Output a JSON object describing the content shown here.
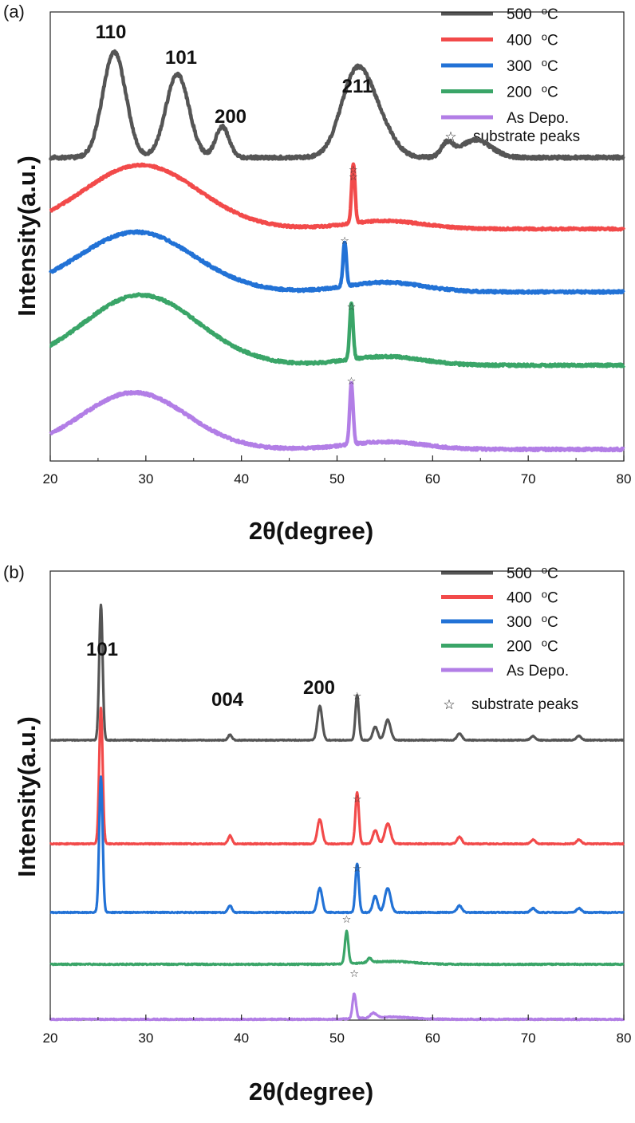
{
  "chart_data": [
    {
      "panel_label": "(a)",
      "type": "line",
      "xlabel": "2θ(degree)",
      "ylabel": "Intensity(a.u.)",
      "xlim": [
        20,
        80
      ],
      "x_ticks": [
        "20",
        "30",
        "40",
        "50",
        "60",
        "70",
        "80"
      ],
      "y_ticks_shown": false,
      "grid": false,
      "legend_position": "top-right",
      "legend": [
        {
          "label": "500",
          "unit": "oC",
          "color": "#555555"
        },
        {
          "label": "400",
          "unit": "oC",
          "color": "#f24a4a"
        },
        {
          "label": "300",
          "unit": "oC",
          "color": "#2272d6"
        },
        {
          "label": "200",
          "unit": "oC",
          "color": "#3aa568"
        },
        {
          "label": "As Depo.",
          "unit": "",
          "color": "#b27ee6"
        }
      ],
      "legend_star_label": "substrate peaks",
      "peak_labels": [
        {
          "text": "110",
          "x": 26.5
        },
        {
          "text": "101",
          "x": 33.5
        },
        {
          "text": "200",
          "x": 38.5
        },
        {
          "text": "211",
          "x": 52
        }
      ],
      "substrate_star_x": [
        51.7,
        51.7,
        50.8,
        51.5,
        51.5
      ],
      "series": [
        {
          "name": "500 oC",
          "color": "#555555",
          "noise": 4,
          "baseline_profile": "flat",
          "base_level": 0.15,
          "peaks": [
            [
              26.7,
              1.2,
              1.2
            ],
            [
              33.3,
              1.2,
              0.95
            ],
            [
              38,
              0.7,
              0.35
            ],
            [
              52,
              1.6,
              0.95
            ],
            [
              54.5,
              1.5,
              0.3
            ],
            [
              61.5,
              0.6,
              0.15
            ],
            [
              64.5,
              1.6,
              0.2
            ]
          ]
        },
        {
          "name": "400 oC",
          "color": "#f24a4a",
          "noise": 2.5,
          "baseline_profile": "flat",
          "base_level": 0.1,
          "hump": {
            "center": 29.5,
            "width": 6,
            "height": 0.8
          },
          "peaks": [
            [
              51.7,
              0.18,
              0.75
            ],
            [
              55,
              4,
              0.1
            ]
          ]
        },
        {
          "name": "300 oC",
          "color": "#2272d6",
          "noise": 3,
          "baseline_profile": "flat",
          "base_level": 0.1,
          "hump": {
            "center": 29,
            "width": 6,
            "height": 0.75
          },
          "peaks": [
            [
              50.8,
              0.18,
              0.55
            ],
            [
              55,
              4,
              0.12
            ]
          ]
        },
        {
          "name": "200 oC",
          "color": "#3aa568",
          "noise": 3,
          "baseline_profile": "flat",
          "base_level": 0.1,
          "hump": {
            "center": 29.5,
            "width": 6,
            "height": 0.8
          },
          "peaks": [
            [
              51.5,
              0.18,
              0.65
            ],
            [
              55,
              4,
              0.1
            ]
          ]
        },
        {
          "name": "As Depo.",
          "color": "#b27ee6",
          "noise": 3,
          "baseline_profile": "flat",
          "base_level": 0.08,
          "hump": {
            "center": 28.8,
            "width": 5.5,
            "height": 0.75
          },
          "peaks": [
            [
              51.5,
              0.18,
              0.8
            ],
            [
              55,
              4,
              0.1
            ]
          ]
        }
      ]
    },
    {
      "panel_label": "(b)",
      "type": "line",
      "xlabel": "2θ(degree)",
      "ylabel": "Intensity(a.u.)",
      "xlim": [
        20,
        80
      ],
      "x_ticks": [
        "20",
        "30",
        "40",
        "50",
        "60",
        "70",
        "80"
      ],
      "y_ticks_shown": false,
      "grid": false,
      "legend_position": "top-right",
      "legend": [
        {
          "label": "500",
          "unit": "oC",
          "color": "#555555"
        },
        {
          "label": "400",
          "unit": "oC",
          "color": "#f24a4a"
        },
        {
          "label": "300",
          "unit": "oC",
          "color": "#2272d6"
        },
        {
          "label": "200",
          "unit": "oC",
          "color": "#3aa568"
        },
        {
          "label": "As Depo.",
          "unit": "",
          "color": "#b27ee6"
        }
      ],
      "legend_star_label": "substrate peaks",
      "peak_labels": [
        {
          "text": "101",
          "x": 25.3
        },
        {
          "text": "004",
          "x": 38.8
        },
        {
          "text": "200",
          "x": 48.2
        }
      ],
      "substrate_star_x": [
        52.1,
        52.1,
        52.1,
        51,
        51.8
      ],
      "series": [
        {
          "name": "500 oC",
          "color": "#555555",
          "noise": 1,
          "peaks": [
            [
              25.3,
              0.18,
              1.0
            ],
            [
              38.8,
              0.2,
              0.04
            ],
            [
              48.2,
              0.25,
              0.25
            ],
            [
              52.1,
              0.18,
              0.33
            ],
            [
              54,
              0.25,
              0.1
            ],
            [
              55.3,
              0.3,
              0.15
            ],
            [
              62.8,
              0.25,
              0.05
            ],
            [
              70.5,
              0.25,
              0.03
            ],
            [
              75.3,
              0.25,
              0.03
            ]
          ]
        },
        {
          "name": "400 oC",
          "color": "#f24a4a",
          "noise": 1.2,
          "peaks": [
            [
              25.3,
              0.18,
              1.0
            ],
            [
              38.8,
              0.2,
              0.06
            ],
            [
              48.2,
              0.25,
              0.18
            ],
            [
              52.1,
              0.18,
              0.38
            ],
            [
              54,
              0.25,
              0.1
            ],
            [
              55.3,
              0.3,
              0.15
            ],
            [
              62.8,
              0.25,
              0.05
            ],
            [
              70.5,
              0.25,
              0.03
            ],
            [
              75.3,
              0.25,
              0.03
            ]
          ]
        },
        {
          "name": "300 oC",
          "color": "#2272d6",
          "noise": 1.2,
          "peaks": [
            [
              25.3,
              0.18,
              1.0
            ],
            [
              38.8,
              0.2,
              0.05
            ],
            [
              48.2,
              0.25,
              0.18
            ],
            [
              52.1,
              0.18,
              0.36
            ],
            [
              54,
              0.25,
              0.12
            ],
            [
              55.3,
              0.3,
              0.18
            ],
            [
              62.8,
              0.25,
              0.05
            ],
            [
              70.5,
              0.25,
              0.03
            ],
            [
              75.3,
              0.25,
              0.03
            ]
          ]
        },
        {
          "name": "200 oC",
          "color": "#3aa568",
          "noise": 1.5,
          "peaks": [
            [
              51,
              0.18,
              0.45
            ],
            [
              53.4,
              0.2,
              0.06
            ],
            [
              55.5,
              2.5,
              0.04
            ]
          ]
        },
        {
          "name": "As Depo.",
          "color": "#b27ee6",
          "noise": 1.5,
          "peaks": [
            [
              51.8,
              0.18,
              0.45
            ],
            [
              53.8,
              0.3,
              0.08
            ],
            [
              55.5,
              2.5,
              0.04
            ]
          ]
        }
      ]
    }
  ]
}
